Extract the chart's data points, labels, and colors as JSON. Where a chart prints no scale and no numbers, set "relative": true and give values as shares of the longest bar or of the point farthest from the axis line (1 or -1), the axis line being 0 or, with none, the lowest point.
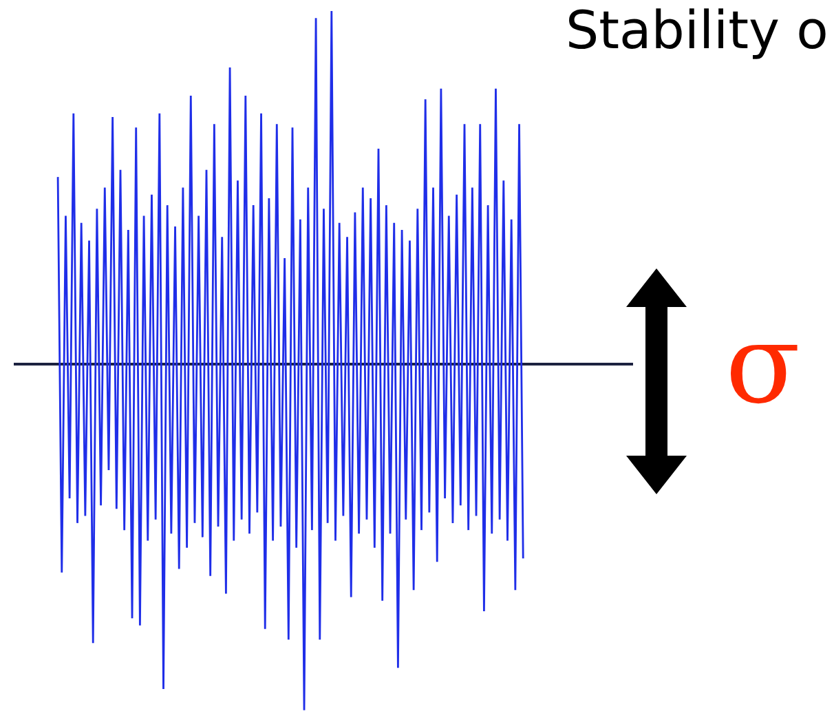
{
  "chart_data": {
    "type": "line",
    "title": "Stability o",
    "relative": true,
    "categories": [
      null,
      null,
      null,
      null,
      null,
      null,
      null,
      null,
      null,
      null,
      null,
      null,
      null,
      null,
      null,
      null,
      null,
      null,
      null,
      null,
      null,
      null,
      null,
      null,
      null,
      null,
      null,
      null,
      null,
      null,
      null,
      null,
      null,
      null,
      null,
      null,
      null,
      null,
      null,
      null,
      null,
      null,
      null,
      null,
      null,
      null,
      null,
      null,
      null,
      null,
      null,
      null,
      null,
      null,
      null,
      null,
      null,
      null,
      null,
      null,
      null,
      null,
      null,
      null,
      null,
      null,
      null,
      null,
      null,
      null,
      null,
      null,
      null,
      null,
      null,
      null,
      null,
      null,
      null,
      null,
      null,
      null,
      null,
      null,
      null,
      null,
      null,
      null,
      null,
      null,
      null,
      null,
      null,
      null,
      null,
      null,
      null,
      null,
      null,
      null,
      null,
      null,
      null,
      null,
      null,
      null,
      null,
      null,
      null,
      null,
      null,
      null,
      null,
      null,
      null,
      null,
      null,
      null,
      null,
      null
    ],
    "series": [
      {
        "color": "#1f2ee8",
        "values": [
          0.53,
          -0.59,
          0.42,
          -0.38,
          0.71,
          -0.45,
          0.4,
          -0.43,
          0.35,
          -0.79,
          0.44,
          -0.4,
          0.5,
          -0.3,
          0.7,
          -0.41,
          0.55,
          -0.47,
          0.38,
          -0.72,
          0.67,
          -0.74,
          0.42,
          -0.5,
          0.48,
          -0.44,
          0.71,
          -0.92,
          0.45,
          -0.48,
          0.39,
          -0.58,
          0.5,
          -0.52,
          0.76,
          -0.45,
          0.42,
          -0.49,
          0.55,
          -0.6,
          0.68,
          -0.46,
          0.36,
          -0.65,
          0.84,
          -0.5,
          0.52,
          -0.44,
          0.76,
          -0.48,
          0.45,
          -0.42,
          0.71,
          -0.75,
          0.47,
          -0.5,
          0.68,
          -0.46,
          0.3,
          -0.78,
          0.67,
          -0.52,
          0.41,
          -0.98,
          0.5,
          -0.47,
          0.98,
          -0.78,
          0.44,
          -0.45,
          1,
          -0.5,
          0.4,
          -0.43,
          0.36,
          -0.66,
          0.43,
          -0.48,
          0.5,
          -0.44,
          0.47,
          -0.52,
          0.61,
          -0.67,
          0.45,
          -0.48,
          0.4,
          -0.86,
          0.38,
          -0.44,
          0.35,
          -0.64,
          0.44,
          -0.47,
          0.75,
          -0.42,
          0.5,
          -0.56,
          0.78,
          -0.38,
          0.42,
          -0.45,
          0.48,
          -0.4,
          0.68,
          -0.47,
          0.5,
          -0.43,
          0.68,
          -0.7,
          0.45,
          -0.48,
          0.78,
          -0.44,
          0.52,
          -0.5,
          0.41,
          -0.64,
          0.68,
          -0.55
        ]
      }
    ],
    "annotations": [
      "σ"
    ]
  }
}
